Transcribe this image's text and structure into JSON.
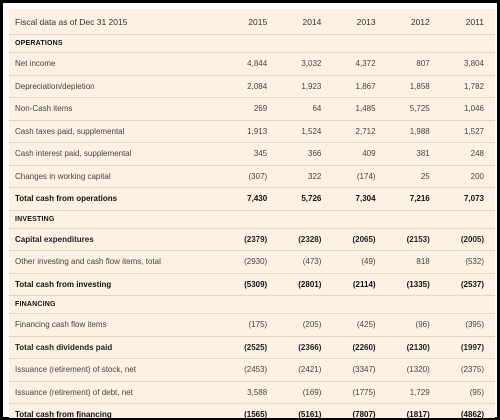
{
  "header": {
    "title": "Fiscal data as of Dec 31 2015",
    "years": [
      "2015",
      "2014",
      "2013",
      "2012",
      "2011"
    ]
  },
  "sections": [
    {
      "name": "OPERATIONS",
      "rows": [
        {
          "label": "Net income",
          "values": [
            "4,844",
            "3,032",
            "4,372",
            "807",
            "3,804"
          ],
          "bold": false,
          "total": false
        },
        {
          "label": "Depreciation/depletion",
          "values": [
            "2,084",
            "1,923",
            "1,867",
            "1,858",
            "1,782"
          ],
          "bold": false,
          "total": false
        },
        {
          "label": "Non-Cash items",
          "values": [
            "269",
            "64",
            "1,485",
            "5,725",
            "1,046"
          ],
          "bold": false,
          "total": false
        },
        {
          "label": "Cash taxes paid, supplemental",
          "values": [
            "1,913",
            "1,524",
            "2,712",
            "1,988",
            "1,527"
          ],
          "bold": false,
          "total": false
        },
        {
          "label": "Cash interest paid, supplemental",
          "values": [
            "345",
            "366",
            "409",
            "381",
            "248"
          ],
          "bold": false,
          "total": false
        },
        {
          "label": "Changes in working capital",
          "values": [
            "(307)",
            "322",
            "(174)",
            "25",
            "200"
          ],
          "bold": false,
          "total": false
        },
        {
          "label": "Total cash from operations",
          "values": [
            "7,430",
            "5,726",
            "7,304",
            "7,216",
            "7,073"
          ],
          "bold": true,
          "total": true
        }
      ]
    },
    {
      "name": "INVESTING",
      "rows": [
        {
          "label": "Capital expenditures",
          "values": [
            "(2379)",
            "(2328)",
            "(2065)",
            "(2153)",
            "(2005)"
          ],
          "bold": true,
          "total": false
        },
        {
          "label": "Other investing and cash flow items, total",
          "values": [
            "(2930)",
            "(473)",
            "(49)",
            "818",
            "(532)"
          ],
          "bold": false,
          "total": false
        },
        {
          "label": "Total cash from investing",
          "values": [
            "(5309)",
            "(2801)",
            "(2114)",
            "(1335)",
            "(2537)"
          ],
          "bold": true,
          "total": true
        }
      ]
    },
    {
      "name": "FINANCING",
      "rows": [
        {
          "label": "Financing cash flow items",
          "values": [
            "(175)",
            "(205)",
            "(425)",
            "(96)",
            "(395)"
          ],
          "bold": false,
          "total": false
        },
        {
          "label": "Total cash dividends paid",
          "values": [
            "(2525)",
            "(2366)",
            "(2260)",
            "(2130)",
            "(1997)"
          ],
          "bold": true,
          "total": false
        },
        {
          "label": "Issuance (retirement) of stock, net",
          "values": [
            "(2453)",
            "(2421)",
            "(3347)",
            "(1320)",
            "(2375)"
          ],
          "bold": false,
          "total": false
        },
        {
          "label": "Issuance (retirement) of debt, net",
          "values": [
            "3,588",
            "(169)",
            "(1775)",
            "1,729",
            "(95)"
          ],
          "bold": false,
          "total": false
        },
        {
          "label": "Total cash from financing",
          "values": [
            "(1565)",
            "(5161)",
            "(7807)",
            "(1817)",
            "(4862)"
          ],
          "bold": true,
          "total": true
        }
      ]
    }
  ]
}
